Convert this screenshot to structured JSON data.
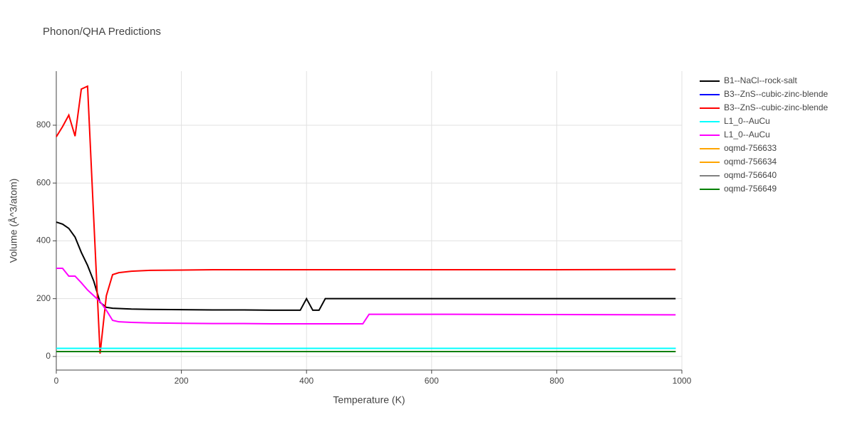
{
  "chart_data": {
    "type": "line",
    "title": "Phonon/QHA Predictions",
    "x_label": "Temperature (K)",
    "y_label": "Volume (Å^3/atom)",
    "x": [
      0,
      10,
      20,
      30,
      40,
      50,
      60,
      70,
      80,
      90,
      100,
      120,
      150,
      200,
      250,
      300,
      350,
      390,
      400,
      410,
      420,
      430,
      490,
      500,
      600,
      800,
      990
    ],
    "xlim": [
      0,
      1000
    ],
    "xticks": [
      0,
      200,
      400,
      600,
      800,
      1000
    ],
    "ylim": [
      -47,
      987
    ],
    "yticks": [
      0,
      200,
      400,
      600,
      800
    ],
    "grid": true,
    "legend": "right",
    "series": [
      {
        "name": "B1--NaCl--rock-salt",
        "color": "#000000",
        "values": [
          465,
          458,
          443,
          413,
          360,
          315,
          260,
          187,
          170,
          167,
          166,
          164,
          163,
          162,
          161,
          161,
          160,
          160,
          200,
          160,
          160,
          200,
          200,
          200,
          200,
          200,
          200
        ]
      },
      {
        "name": "B3--ZnS--cubic-zinc-blende",
        "color": "#0000ff",
        "values": [
          28,
          28,
          28,
          28,
          28,
          28,
          28,
          28,
          28,
          28,
          28,
          28,
          28,
          28,
          28,
          28,
          28,
          28,
          28,
          28,
          28,
          28,
          28,
          28,
          28,
          28,
          28
        ]
      },
      {
        "name": "B3--ZnS--cubic-zinc-blende",
        "color": "#ff0000",
        "values": [
          760,
          795,
          835,
          762,
          925,
          935,
          470,
          10,
          210,
          283,
          290,
          295,
          298,
          299,
          300,
          300,
          300,
          300,
          300,
          300,
          300,
          300,
          300,
          300,
          300,
          300,
          301
        ]
      },
      {
        "name": "L1_0--AuCu",
        "color": "#00ffff",
        "values": [
          28,
          28,
          28,
          28,
          28,
          28,
          28,
          28,
          28,
          28,
          28,
          28,
          28,
          28,
          28,
          28,
          28,
          28,
          28,
          28,
          28,
          28,
          28,
          28,
          28,
          28,
          28
        ]
      },
      {
        "name": "L1_0--AuCu",
        "color": "#ff00ff",
        "values": [
          305,
          305,
          278,
          278,
          255,
          230,
          210,
          190,
          160,
          125,
          120,
          118,
          116,
          115,
          114,
          114,
          113,
          113,
          113,
          113,
          113,
          113,
          113,
          146,
          146,
          145,
          144
        ]
      },
      {
        "name": "oqmd-756633",
        "color": "#ffa500",
        "values": [
          17,
          17,
          17,
          17,
          17,
          17,
          17,
          17,
          17,
          17,
          17,
          17,
          17,
          17,
          17,
          17,
          17,
          17,
          17,
          17,
          17,
          17,
          17,
          17,
          17,
          17,
          17
        ]
      },
      {
        "name": "oqmd-756634",
        "color": "#ffa500",
        "values": [
          17,
          17,
          17,
          17,
          17,
          17,
          17,
          17,
          17,
          17,
          17,
          17,
          17,
          17,
          17,
          17,
          17,
          17,
          17,
          17,
          17,
          17,
          17,
          17,
          17,
          17,
          17
        ]
      },
      {
        "name": "oqmd-756640",
        "color": "#808080",
        "values": [
          17,
          17,
          17,
          17,
          17,
          17,
          17,
          17,
          17,
          17,
          17,
          17,
          17,
          17,
          17,
          17,
          17,
          17,
          17,
          17,
          17,
          17,
          17,
          17,
          17,
          17,
          17
        ]
      },
      {
        "name": "oqmd-756649",
        "color": "#008000",
        "values": [
          17,
          17,
          17,
          17,
          17,
          17,
          17,
          17,
          17,
          17,
          17,
          17,
          17,
          17,
          17,
          17,
          17,
          17,
          17,
          17,
          17,
          17,
          17,
          17,
          17,
          17,
          17
        ]
      }
    ]
  }
}
